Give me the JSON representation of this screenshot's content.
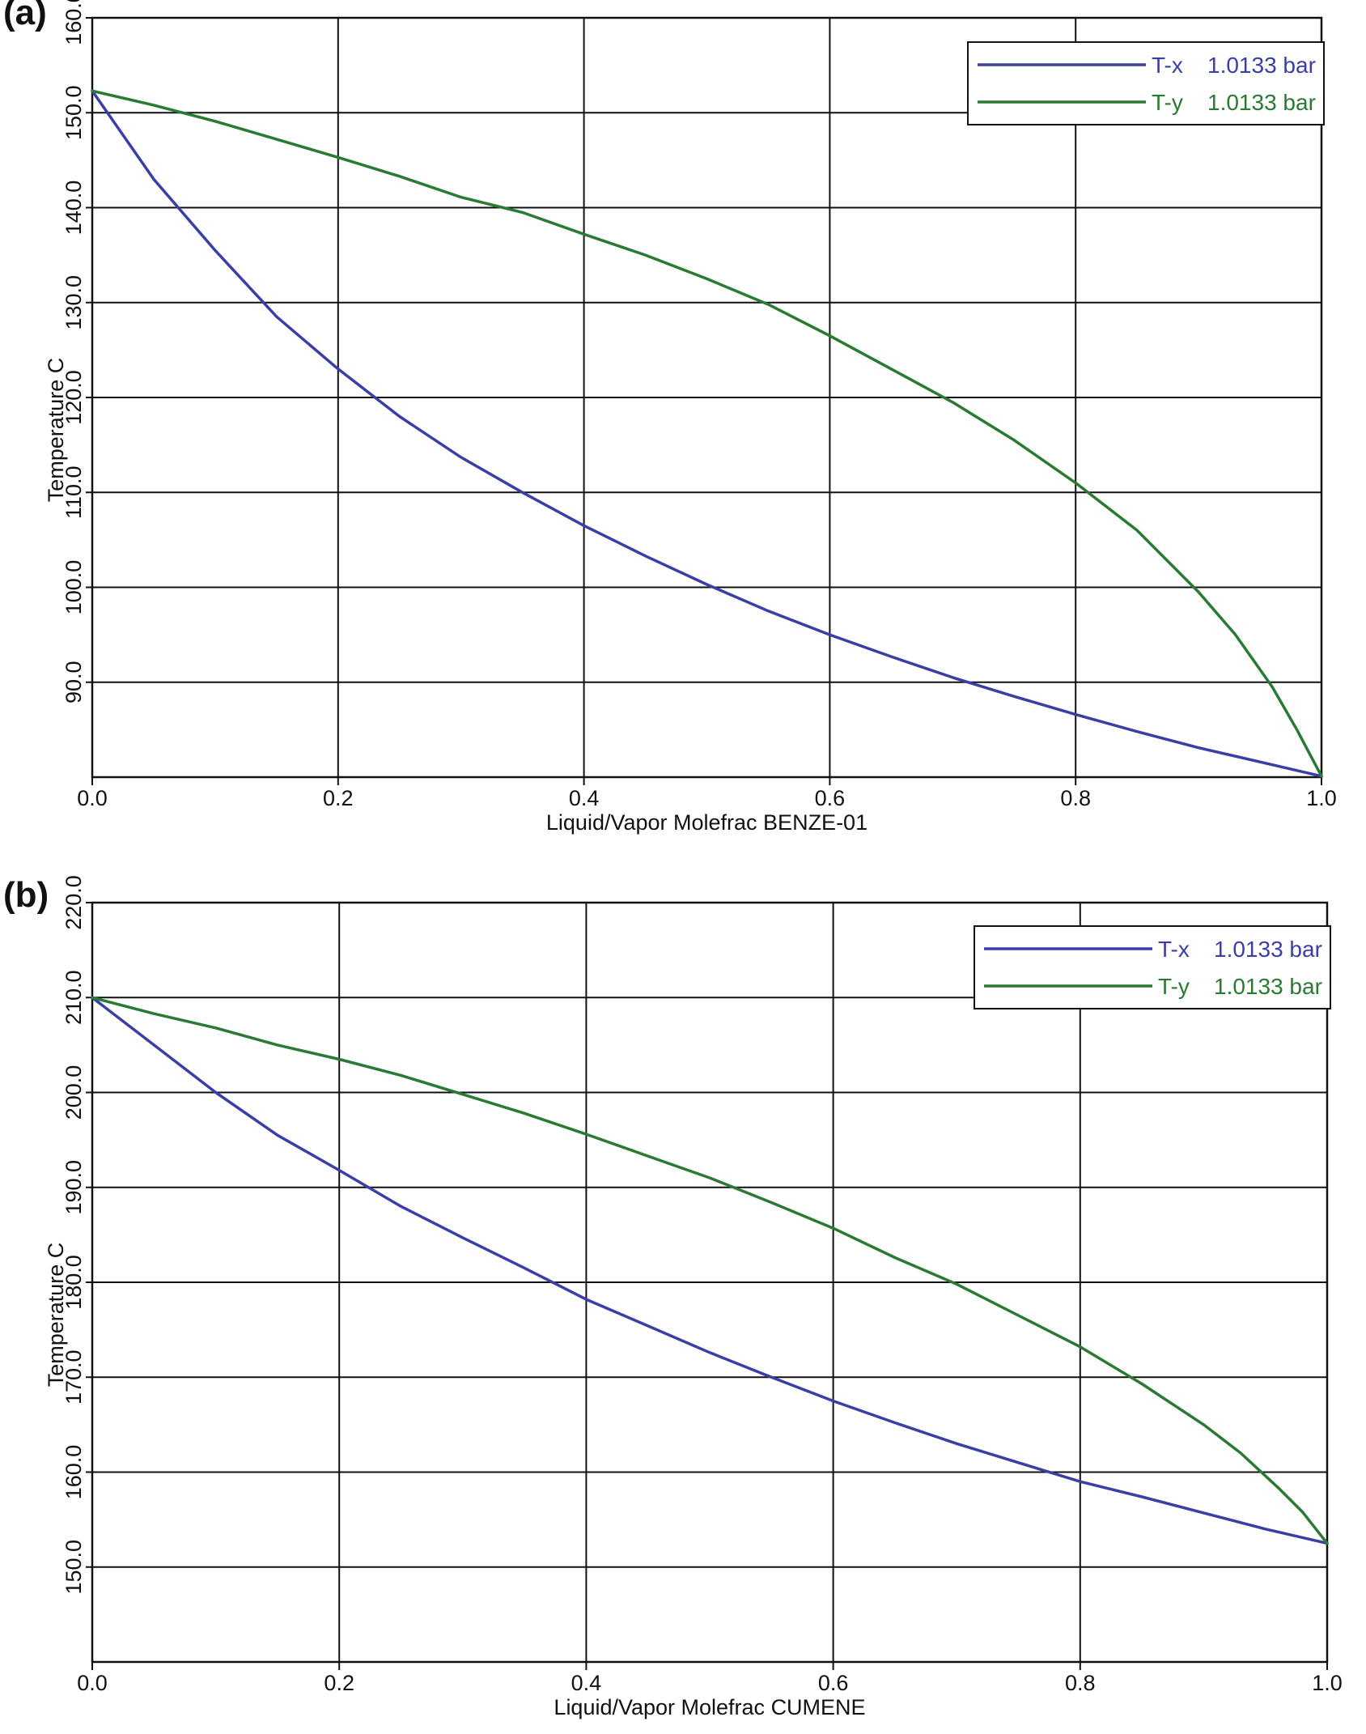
{
  "chart_data": [
    {
      "type": "line",
      "panel_label": "(a)",
      "xlabel": "Liquid/Vapor Molefrac BENZE-01",
      "ylabel": "Temperature C",
      "xlim": [
        0,
        1
      ],
      "ylim": [
        80,
        160
      ],
      "x_ticks": [
        "0.0",
        "0.2",
        "0.4",
        "0.6",
        "0.8",
        "1.0"
      ],
      "y_ticks": [
        "90.0",
        "100.0",
        "110.0",
        "120.0",
        "130.0",
        "140.0",
        "150.0",
        "160.0"
      ],
      "grid": true,
      "legend_position": "top-right",
      "colors": {
        "tx": "#3a3fa6",
        "ty": "#2a7a33"
      },
      "series": [
        {
          "legend_name": "T-x",
          "legend_value": "1.0133 bar",
          "x": [
            0.0,
            0.05,
            0.1,
            0.15,
            0.2,
            0.25,
            0.3,
            0.35,
            0.4,
            0.45,
            0.5,
            0.55,
            0.6,
            0.65,
            0.7,
            0.75,
            0.8,
            0.85,
            0.9,
            0.95,
            1.0
          ],
          "y": [
            152.3,
            143.0,
            135.5,
            128.5,
            123.0,
            118.0,
            113.7,
            110.0,
            106.5,
            103.3,
            100.3,
            97.5,
            95.0,
            92.7,
            90.5,
            88.5,
            86.6,
            84.8,
            83.1,
            81.6,
            80.1
          ]
        },
        {
          "legend_name": "T-y",
          "legend_value": "1.0133 bar",
          "x": [
            0.0,
            0.05,
            0.1,
            0.15,
            0.2,
            0.25,
            0.3,
            0.35,
            0.4,
            0.45,
            0.5,
            0.55,
            0.6,
            0.65,
            0.7,
            0.75,
            0.8,
            0.85,
            0.9,
            0.93,
            0.96,
            0.98,
            1.0
          ],
          "y": [
            152.3,
            150.8,
            149.1,
            147.2,
            145.3,
            143.3,
            141.1,
            139.5,
            137.2,
            135.0,
            132.5,
            129.8,
            126.5,
            123.0,
            119.5,
            115.5,
            111.0,
            106.0,
            99.5,
            95.0,
            89.5,
            85.0,
            80.1
          ]
        }
      ]
    },
    {
      "type": "line",
      "panel_label": "(b)",
      "xlabel": "Liquid/Vapor Molefrac CUMENE",
      "ylabel": "Temperature C",
      "xlim": [
        0,
        1
      ],
      "ylim": [
        140,
        220
      ],
      "x_ticks": [
        "0.0",
        "0.2",
        "0.4",
        "0.6",
        "0.8",
        "1.0"
      ],
      "y_ticks": [
        "150.0",
        "160.0",
        "170.0",
        "180.0",
        "190.0",
        "200.0",
        "210.0",
        "220.0"
      ],
      "grid": true,
      "legend_position": "top-right",
      "colors": {
        "tx": "#3a3fa6",
        "ty": "#2a7a33"
      },
      "series": [
        {
          "legend_name": "T-x",
          "legend_value": "1.0133 bar",
          "x": [
            0.0,
            0.05,
            0.1,
            0.15,
            0.2,
            0.25,
            0.3,
            0.35,
            0.4,
            0.45,
            0.5,
            0.55,
            0.6,
            0.65,
            0.7,
            0.75,
            0.8,
            0.85,
            0.9,
            0.95,
            1.0
          ],
          "y": [
            210.0,
            205.0,
            200.0,
            195.5,
            191.8,
            188.0,
            184.7,
            181.5,
            178.2,
            175.4,
            172.6,
            170.0,
            167.5,
            165.2,
            163.0,
            161.0,
            159.0,
            157.4,
            155.7,
            154.0,
            152.5
          ]
        },
        {
          "legend_name": "T-y",
          "legend_value": "1.0133 bar",
          "x": [
            0.0,
            0.05,
            0.1,
            0.15,
            0.2,
            0.25,
            0.3,
            0.35,
            0.4,
            0.45,
            0.5,
            0.55,
            0.6,
            0.65,
            0.7,
            0.75,
            0.8,
            0.85,
            0.9,
            0.93,
            0.96,
            0.98,
            1.0
          ],
          "y": [
            210.0,
            208.3,
            206.8,
            205.0,
            203.5,
            201.8,
            199.8,
            197.8,
            195.6,
            193.3,
            191.0,
            188.4,
            185.7,
            182.6,
            179.8,
            176.5,
            173.2,
            169.3,
            165.0,
            162.0,
            158.4,
            155.8,
            152.5
          ]
        }
      ]
    }
  ]
}
